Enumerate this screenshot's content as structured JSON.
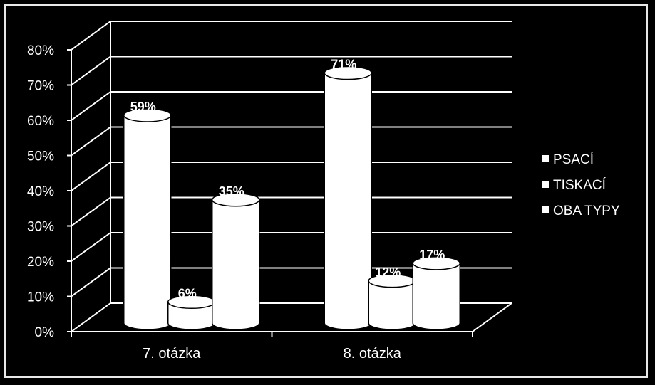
{
  "chart_data": {
    "type": "bar",
    "style": "3d-cylinder",
    "categories": [
      "7. otázka",
      "8. otázka"
    ],
    "series": [
      {
        "name": "PSACÍ",
        "values": [
          59,
          71
        ]
      },
      {
        "name": "TISKACÍ",
        "values": [
          6,
          12
        ]
      },
      {
        "name": "OBA TYPY",
        "values": [
          35,
          17
        ]
      }
    ],
    "data_labels": [
      [
        "59%",
        "71%"
      ],
      [
        "6%",
        "12%"
      ],
      [
        "35%",
        "17%"
      ]
    ],
    "yticks": [
      "0%",
      "10%",
      "20%",
      "30%",
      "40%",
      "50%",
      "60%",
      "70%",
      "80%"
    ],
    "ylim": [
      0,
      80
    ],
    "grid": true,
    "legend": "right",
    "colors": {
      "background": "#000000",
      "bars": "#ffffff",
      "grid": "#ffffff",
      "text": "#ffffff"
    }
  }
}
